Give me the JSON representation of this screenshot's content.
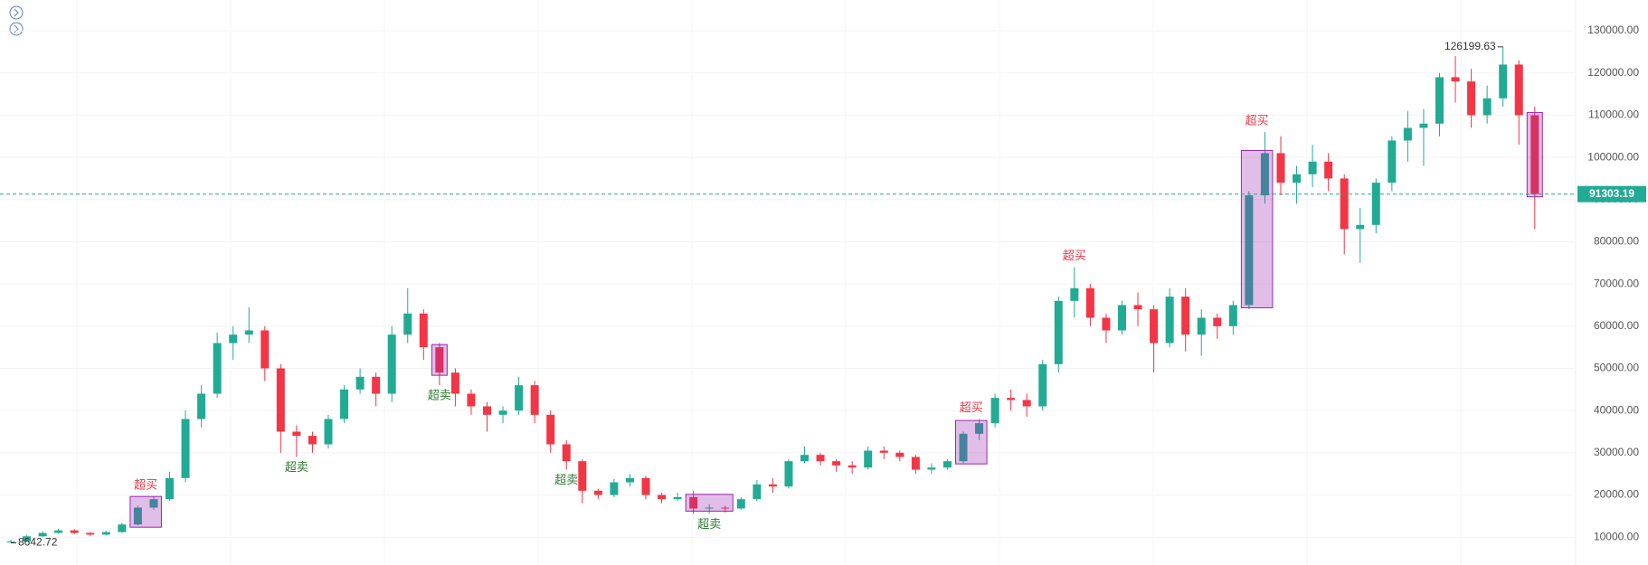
{
  "chart_data": {
    "type": "candlestick",
    "open": [
      8800,
      9000,
      10200,
      11000,
      11600,
      11000,
      10600,
      11200,
      13000,
      17000,
      19000,
      24000,
      38000,
      44000,
      56000,
      58000,
      59000,
      50000,
      35000,
      34000,
      32000,
      38000,
      45000,
      48000,
      44000,
      58000,
      63000,
      55000,
      49000,
      44000,
      41000,
      39000,
      40000,
      46000,
      39000,
      32000,
      28000,
      21000,
      20000,
      23000,
      24000,
      20000,
      19000,
      19500,
      16800,
      17000,
      16800,
      19000,
      22500,
      22000,
      28000,
      29500,
      28000,
      27000,
      26500,
      30500,
      30000,
      29000,
      26000,
      26500,
      28000,
      34500,
      37000,
      43000,
      42500,
      41000,
      51000,
      66000,
      69000,
      62000,
      59000,
      65000,
      64000,
      56000,
      67000,
      58000,
      62000,
      60000,
      65000,
      91000,
      101000,
      94000,
      96000,
      99000,
      95000,
      83000,
      84000,
      94000,
      104000,
      107000,
      108000,
      119000,
      118000,
      110000,
      114000,
      122000,
      110000
    ],
    "high": [
      9400,
      10500,
      11400,
      12000,
      11900,
      11200,
      11500,
      13400,
      17500,
      19600,
      25500,
      40000,
      46000,
      58500,
      60000,
      64500,
      60000,
      51000,
      36500,
      35000,
      39000,
      46000,
      50000,
      49000,
      60000,
      69000,
      64000,
      56000,
      50000,
      45000,
      42000,
      41000,
      48000,
      47000,
      40000,
      33000,
      28500,
      21500,
      23800,
      25000,
      24500,
      20500,
      20500,
      21000,
      17800,
      17500,
      19500,
      23500,
      24000,
      28500,
      31500,
      30000,
      28500,
      28000,
      31500,
      31500,
      30500,
      29500,
      27500,
      28500,
      35000,
      38000,
      44000,
      45000,
      44000,
      52000,
      67000,
      74000,
      70000,
      63000,
      66000,
      68000,
      65000,
      69000,
      69000,
      64000,
      63000,
      66000,
      92000,
      106000,
      105000,
      98000,
      103000,
      101000,
      96000,
      88000,
      95000,
      105000,
      111000,
      111500,
      120000,
      124000,
      121000,
      117000,
      126199.63,
      123000,
      112000
    ],
    "low": [
      8642.72,
      8900,
      10000,
      10800,
      10700,
      10300,
      10400,
      11000,
      12800,
      16500,
      18700,
      23000,
      36000,
      43000,
      52000,
      56000,
      47000,
      30000,
      29000,
      30000,
      31000,
      37000,
      44000,
      41000,
      42000,
      56000,
      52000,
      46000,
      41000,
      39000,
      35000,
      37000,
      39000,
      37000,
      30000,
      26000,
      18000,
      19000,
      19500,
      22000,
      19000,
      18000,
      18500,
      15500,
      15500,
      15800,
      16500,
      18500,
      20500,
      21500,
      27500,
      27000,
      25500,
      25000,
      26000,
      28500,
      28000,
      25000,
      25000,
      26000,
      27500,
      33000,
      36000,
      40000,
      38500,
      40000,
      49000,
      62000,
      60000,
      56000,
      58000,
      60000,
      49000,
      55000,
      54000,
      53000,
      57000,
      58000,
      64000,
      89000,
      91000,
      89000,
      93000,
      92000,
      77000,
      75000,
      82000,
      92000,
      99000,
      98000,
      105000,
      113000,
      107000,
      108000,
      112000,
      103000,
      83000
    ],
    "close": [
      9000,
      10200,
      11000,
      11600,
      11000,
      10600,
      11200,
      13000,
      17000,
      19000,
      24000,
      38000,
      44000,
      56000,
      58000,
      59000,
      50000,
      35000,
      34000,
      32000,
      38000,
      45000,
      48000,
      44000,
      58000,
      63000,
      55000,
      49000,
      44000,
      41000,
      39000,
      40000,
      46000,
      39000,
      32000,
      28000,
      21000,
      20000,
      23000,
      24000,
      20000,
      19000,
      19500,
      16800,
      17000,
      16800,
      19000,
      22500,
      22000,
      28000,
      29500,
      28000,
      27000,
      26500,
      30500,
      30000,
      29000,
      26000,
      26500,
      28000,
      34500,
      37000,
      43000,
      42500,
      41000,
      51000,
      66000,
      69000,
      62000,
      59000,
      65000,
      64000,
      56000,
      67000,
      58000,
      62000,
      60000,
      65000,
      91000,
      101000,
      94000,
      96000,
      99000,
      95000,
      83000,
      84000,
      94000,
      104000,
      107000,
      108000,
      119000,
      118000,
      110000,
      114000,
      122000,
      110000,
      91303.19
    ],
    "up_color": "#22ab94",
    "down_color": "#f23645",
    "ylim": [
      3400,
      137300
    ],
    "yticks": [
      {
        "value": 10000,
        "label": "10000.00"
      },
      {
        "value": 20000,
        "label": "20000.00"
      },
      {
        "value": 30000,
        "label": "30000.00"
      },
      {
        "value": 40000,
        "label": "40000.00"
      },
      {
        "value": 50000,
        "label": "50000.00"
      },
      {
        "value": 60000,
        "label": "60000.00"
      },
      {
        "value": 70000,
        "label": "70000.00"
      },
      {
        "value": 80000,
        "label": "80000.00"
      },
      {
        "value": 90000,
        "label": "90000.00"
      },
      {
        "value": 100000,
        "label": "100000.00"
      },
      {
        "value": 110000,
        "label": "110000.00"
      },
      {
        "value": 120000,
        "label": "120000.00"
      },
      {
        "value": 130000,
        "label": "130000.00"
      }
    ],
    "grid": true,
    "last_price": 91303.19,
    "last_price_color": "#22ab94",
    "box_color": "#9c27b0",
    "signals": [
      {
        "label": "超买",
        "color": "#f23645",
        "side": "above",
        "from": 8,
        "to": 9,
        "box": true
      },
      {
        "label": "超卖",
        "color": "#2e7d32",
        "side": "below",
        "from": 18,
        "to": 18,
        "box": false
      },
      {
        "label": "超卖",
        "color": "#2e7d32",
        "side": "below",
        "from": 27,
        "to": 27,
        "box": true
      },
      {
        "label": "超卖",
        "color": "#2e7d32",
        "side": "below",
        "from": 35,
        "to": 35,
        "box": false
      },
      {
        "label": "超卖",
        "color": "#2e7d32",
        "side": "below",
        "from": 43,
        "to": 45,
        "box": true
      },
      {
        "label": "超买",
        "color": "#f23645",
        "side": "above",
        "from": 60,
        "to": 61,
        "box": true
      },
      {
        "label": "超买",
        "color": "#f23645",
        "side": "above",
        "from": 67,
        "to": 67,
        "box": false
      },
      {
        "label": "超买",
        "color": "#f23645",
        "side": "above",
        "from": 78,
        "to": 79,
        "box": true
      },
      {
        "from": 96,
        "to": 96,
        "box": true
      }
    ]
  }
}
